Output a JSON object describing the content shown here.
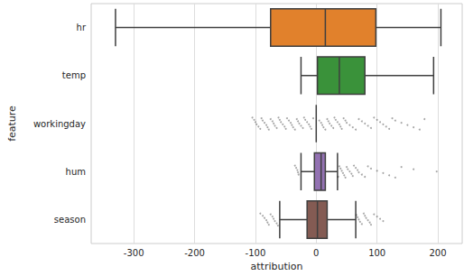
{
  "chart_data": {
    "type": "boxplot",
    "orientation": "horizontal",
    "x_label": "attribution",
    "y_label": "feature",
    "categories": [
      "hr",
      "temp",
      "workingday",
      "hum",
      "season"
    ],
    "values": [
      [
        -330,
        -75,
        15,
        98,
        205
      ],
      [
        -25,
        2,
        38,
        80,
        193
      ],
      [
        0,
        0,
        0,
        0,
        0
      ],
      [
        -25,
        -3,
        8,
        15,
        35
      ],
      [
        -60,
        -15,
        2,
        18,
        65
      ]
    ],
    "outliers": [
      [],
      [],
      [
        -105,
        -102,
        -100,
        -98,
        -95,
        -92,
        -90,
        -88,
        -85,
        -82,
        -80,
        -78,
        -75,
        -72,
        -70,
        -68,
        -65,
        -62,
        -60,
        -58,
        -55,
        -52,
        -50,
        -48,
        -45,
        -42,
        -40,
        -38,
        -35,
        -32,
        -30,
        -28,
        -25,
        -22,
        -20,
        -18,
        -15,
        -12,
        -10,
        -8,
        -5,
        5,
        8,
        10,
        12,
        15,
        18,
        20,
        22,
        25,
        28,
        30,
        32,
        35,
        38,
        40,
        42,
        45,
        48,
        50,
        55,
        60,
        65,
        70,
        75,
        80,
        85,
        90,
        95,
        100,
        105,
        110,
        115,
        120,
        125,
        130,
        140,
        150,
        160,
        170,
        178
      ],
      [
        -35,
        -33,
        -31,
        -30,
        -29,
        36,
        38,
        40,
        42,
        44,
        46,
        48,
        50,
        52,
        55,
        58,
        60,
        62,
        65,
        68,
        70,
        75,
        80,
        85,
        90,
        100,
        110,
        120,
        130,
        140,
        160,
        198
      ],
      [
        -92,
        -88,
        -85,
        -82,
        -80,
        -78,
        -75,
        -72,
        -70,
        -68,
        -65,
        -63,
        66,
        68,
        70,
        72,
        75,
        78,
        80,
        82,
        85,
        88,
        90,
        95,
        100,
        105,
        110
      ]
    ],
    "colors": [
      "#e1812c",
      "#3a923a",
      "#c03d3e",
      "#9372b2",
      "#845b53"
    ],
    "xlim": [
      -370,
      240
    ],
    "xticks": [
      -300,
      -200,
      -100,
      0,
      100,
      200
    ],
    "grid": true
  }
}
